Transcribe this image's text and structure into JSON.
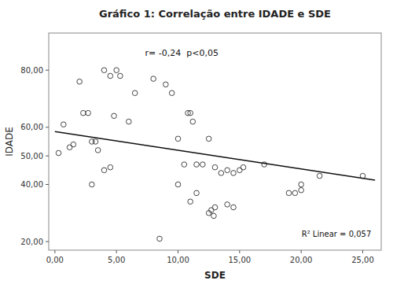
{
  "chart_data": {
    "type": "scatter",
    "title": "Gráfico 1: Correlação entre IDADE e SDE",
    "x_label": "SDE",
    "y_label": "IDADE",
    "xlim": [
      -0.5,
      26.5
    ],
    "ylim": [
      17,
      93
    ],
    "xticks": [
      {
        "value": 0,
        "label": "0,00"
      },
      {
        "value": 5,
        "label": "5,00"
      },
      {
        "value": 10,
        "label": "10,00"
      },
      {
        "value": 15,
        "label": "15,00"
      },
      {
        "value": 20,
        "label": "20,00"
      },
      {
        "value": 25,
        "label": "25,00"
      }
    ],
    "yticks": [
      {
        "value": 20,
        "label": "20,00"
      },
      {
        "value": 40,
        "label": "40,00"
      },
      {
        "value": 50,
        "label": "50,00"
      },
      {
        "value": 60,
        "label": "60,00"
      },
      {
        "value": 80,
        "label": "80,00"
      }
    ],
    "grid": false,
    "annotations": [
      "r= -0,24  p<0,05",
      "R² Linear = 0,057"
    ],
    "series": [
      {
        "type": "scatter",
        "color": "#444444",
        "marker": "open-circle",
        "x": [
          0.3,
          0.7,
          1.2,
          1.5,
          2.0,
          2.3,
          2.7,
          3.0,
          3.3,
          3.5,
          4.0,
          4.5,
          4.8,
          5.0,
          5.3,
          6.0,
          6.5,
          8.0,
          9.0,
          9.5,
          10.0,
          10.5,
          10.8,
          11.0,
          11.2,
          11.5,
          12.0,
          12.5,
          13.0,
          13.5,
          14.0,
          14.5,
          15.0,
          15.3,
          17.0,
          19.5,
          20.0,
          21.5,
          25.0,
          3.0,
          4.0,
          4.5,
          10.0,
          11.0,
          11.5,
          13.0,
          14.0,
          14.5,
          19.0,
          20.0,
          8.5,
          12.5,
          12.7,
          12.9
        ],
        "values": [
          51,
          61,
          53,
          54,
          76,
          65,
          65,
          55,
          55,
          52,
          80,
          78,
          64,
          80,
          78,
          62,
          72,
          77,
          75,
          72,
          56,
          47,
          65,
          65,
          62,
          47,
          47,
          56,
          46,
          44,
          45,
          44,
          45,
          46,
          47,
          37,
          40,
          43,
          43,
          40,
          45,
          46,
          40,
          34,
          37,
          32,
          33,
          32,
          37,
          38,
          21,
          30,
          31,
          29
        ]
      },
      {
        "type": "line",
        "color": "#111111",
        "line_style": "solid",
        "x": [
          0.0,
          26.0
        ],
        "values": [
          58.5,
          41.5
        ]
      }
    ]
  }
}
